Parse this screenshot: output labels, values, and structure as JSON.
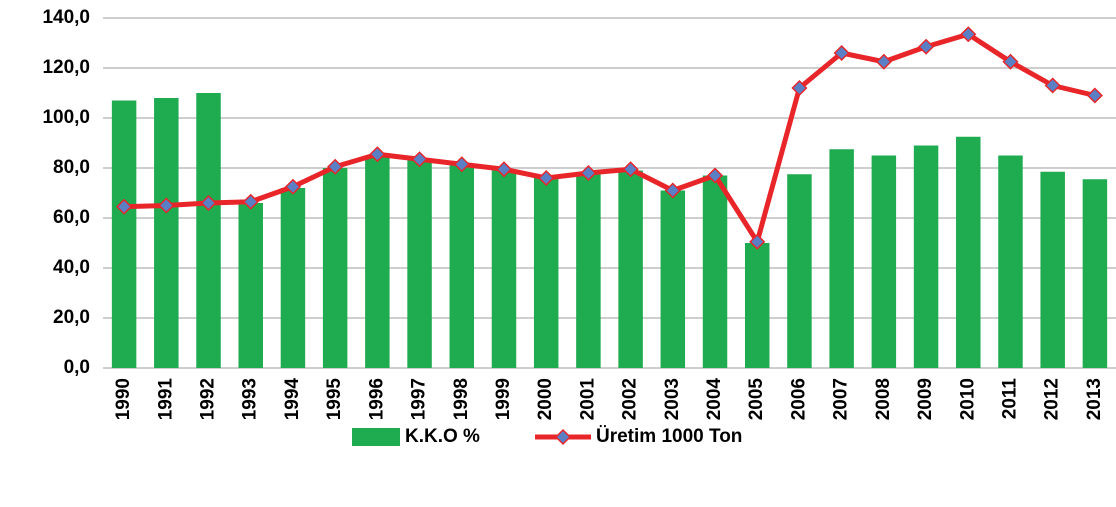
{
  "chart_data": {
    "type": "bar-line",
    "categories": [
      "1990",
      "1991",
      "1992",
      "1993",
      "1994",
      "1995",
      "1996",
      "1997",
      "1998",
      "1999",
      "2000",
      "2001",
      "2002",
      "2003",
      "2004",
      "2005",
      "2006",
      "2007",
      "2008",
      "2009",
      "2010",
      "2011",
      "2012",
      "2013"
    ],
    "series": [
      {
        "name": "K.K.O %",
        "type": "bar",
        "color": "#1fab4f",
        "values": [
          107,
          108,
          110,
          66,
          72,
          80,
          85,
          83,
          81,
          79,
          76,
          78,
          79,
          71,
          77,
          50,
          77.5,
          87.5,
          85,
          89,
          92.5,
          85,
          78.5,
          75.5
        ]
      },
      {
        "name": "Üretim 1000 Ton",
        "type": "line",
        "color": "#e8262a",
        "marker_color": "#5b7fc4",
        "values": [
          64.5,
          65,
          66,
          66.5,
          72.5,
          80.5,
          85.5,
          83.5,
          81.5,
          79.5,
          76,
          78,
          79.5,
          71,
          77,
          50.5,
          112,
          126,
          122.5,
          128.5,
          133.5,
          122.5,
          113,
          109
        ]
      }
    ],
    "ylim": [
      0,
      140
    ],
    "yticks": [
      {
        "value": 0,
        "label": "0,0"
      },
      {
        "value": 20,
        "label": "20,0"
      },
      {
        "value": 40,
        "label": "40,0"
      },
      {
        "value": 60,
        "label": "60,0"
      },
      {
        "value": 80,
        "label": "80,0"
      },
      {
        "value": 100,
        "label": "100,0"
      },
      {
        "value": 120,
        "label": "120,0"
      },
      {
        "value": 140,
        "label": "140,0"
      }
    ],
    "grid": true,
    "legend": "bottom"
  }
}
